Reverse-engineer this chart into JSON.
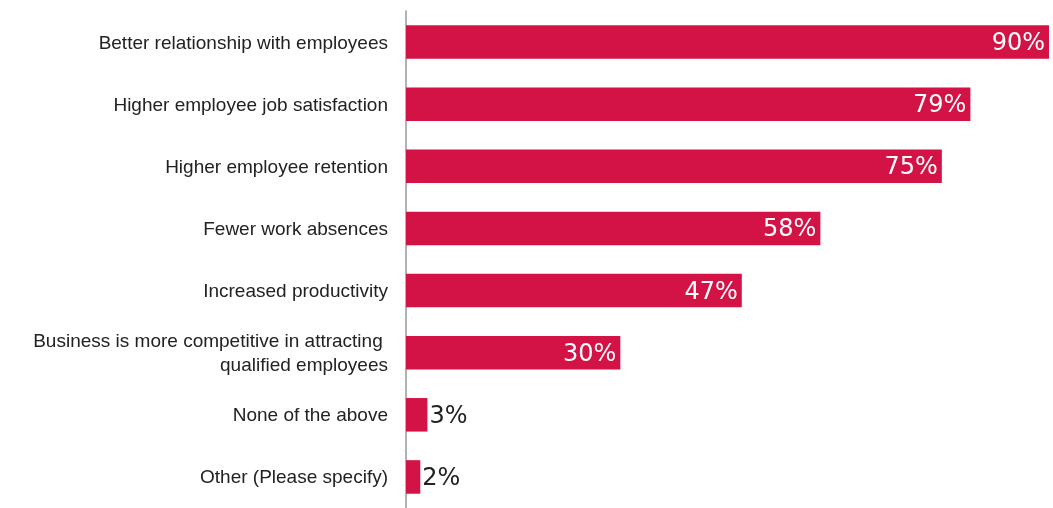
{
  "chart_data": {
    "type": "bar",
    "orientation": "horizontal",
    "categories": [
      "Better relationship with employees",
      "Higher employee job satisfaction",
      "Higher employee retention",
      "Fewer work absences",
      "Increased productivity",
      "Business is more competitive in attracting qualified employees",
      "None of the above",
      "Other (Please specify)"
    ],
    "values": [
      90,
      79,
      75,
      58,
      47,
      30,
      3,
      2
    ],
    "value_labels": [
      "90%",
      "79%",
      "75%",
      "58%",
      "47%",
      "30%",
      "3%",
      "2%"
    ],
    "color": "#d31245"
  }
}
